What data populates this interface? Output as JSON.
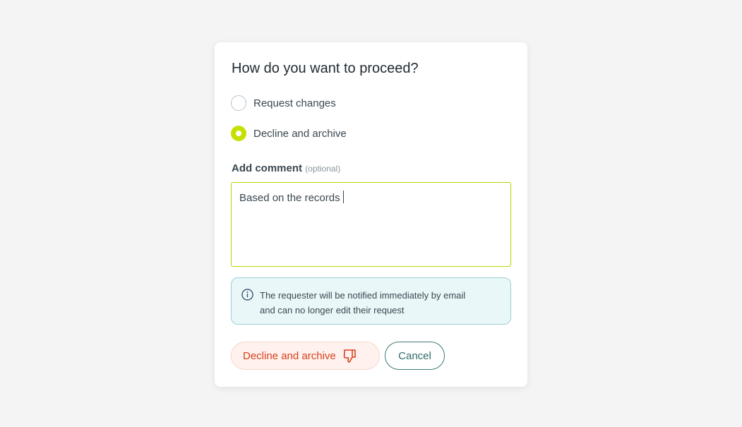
{
  "dialog": {
    "title": "How do you want to proceed?",
    "options": [
      {
        "label": "Request changes",
        "selected": false
      },
      {
        "label": "Decline and archive",
        "selected": true
      }
    ],
    "comment": {
      "label": "Add comment",
      "optional": "(optional)",
      "value": "Based on the records"
    },
    "info": {
      "icon": "info-circle-icon",
      "line1": "The requester will be notified immediately by email",
      "line2": "and can no longer edit their request"
    },
    "buttons": {
      "decline": "Decline and archive",
      "decline_icon": "thumbs-down-icon",
      "cancel": "Cancel"
    },
    "colors": {
      "accent": "#c5e000",
      "danger": "#d8401c",
      "secondary": "#3d7a78"
    }
  }
}
